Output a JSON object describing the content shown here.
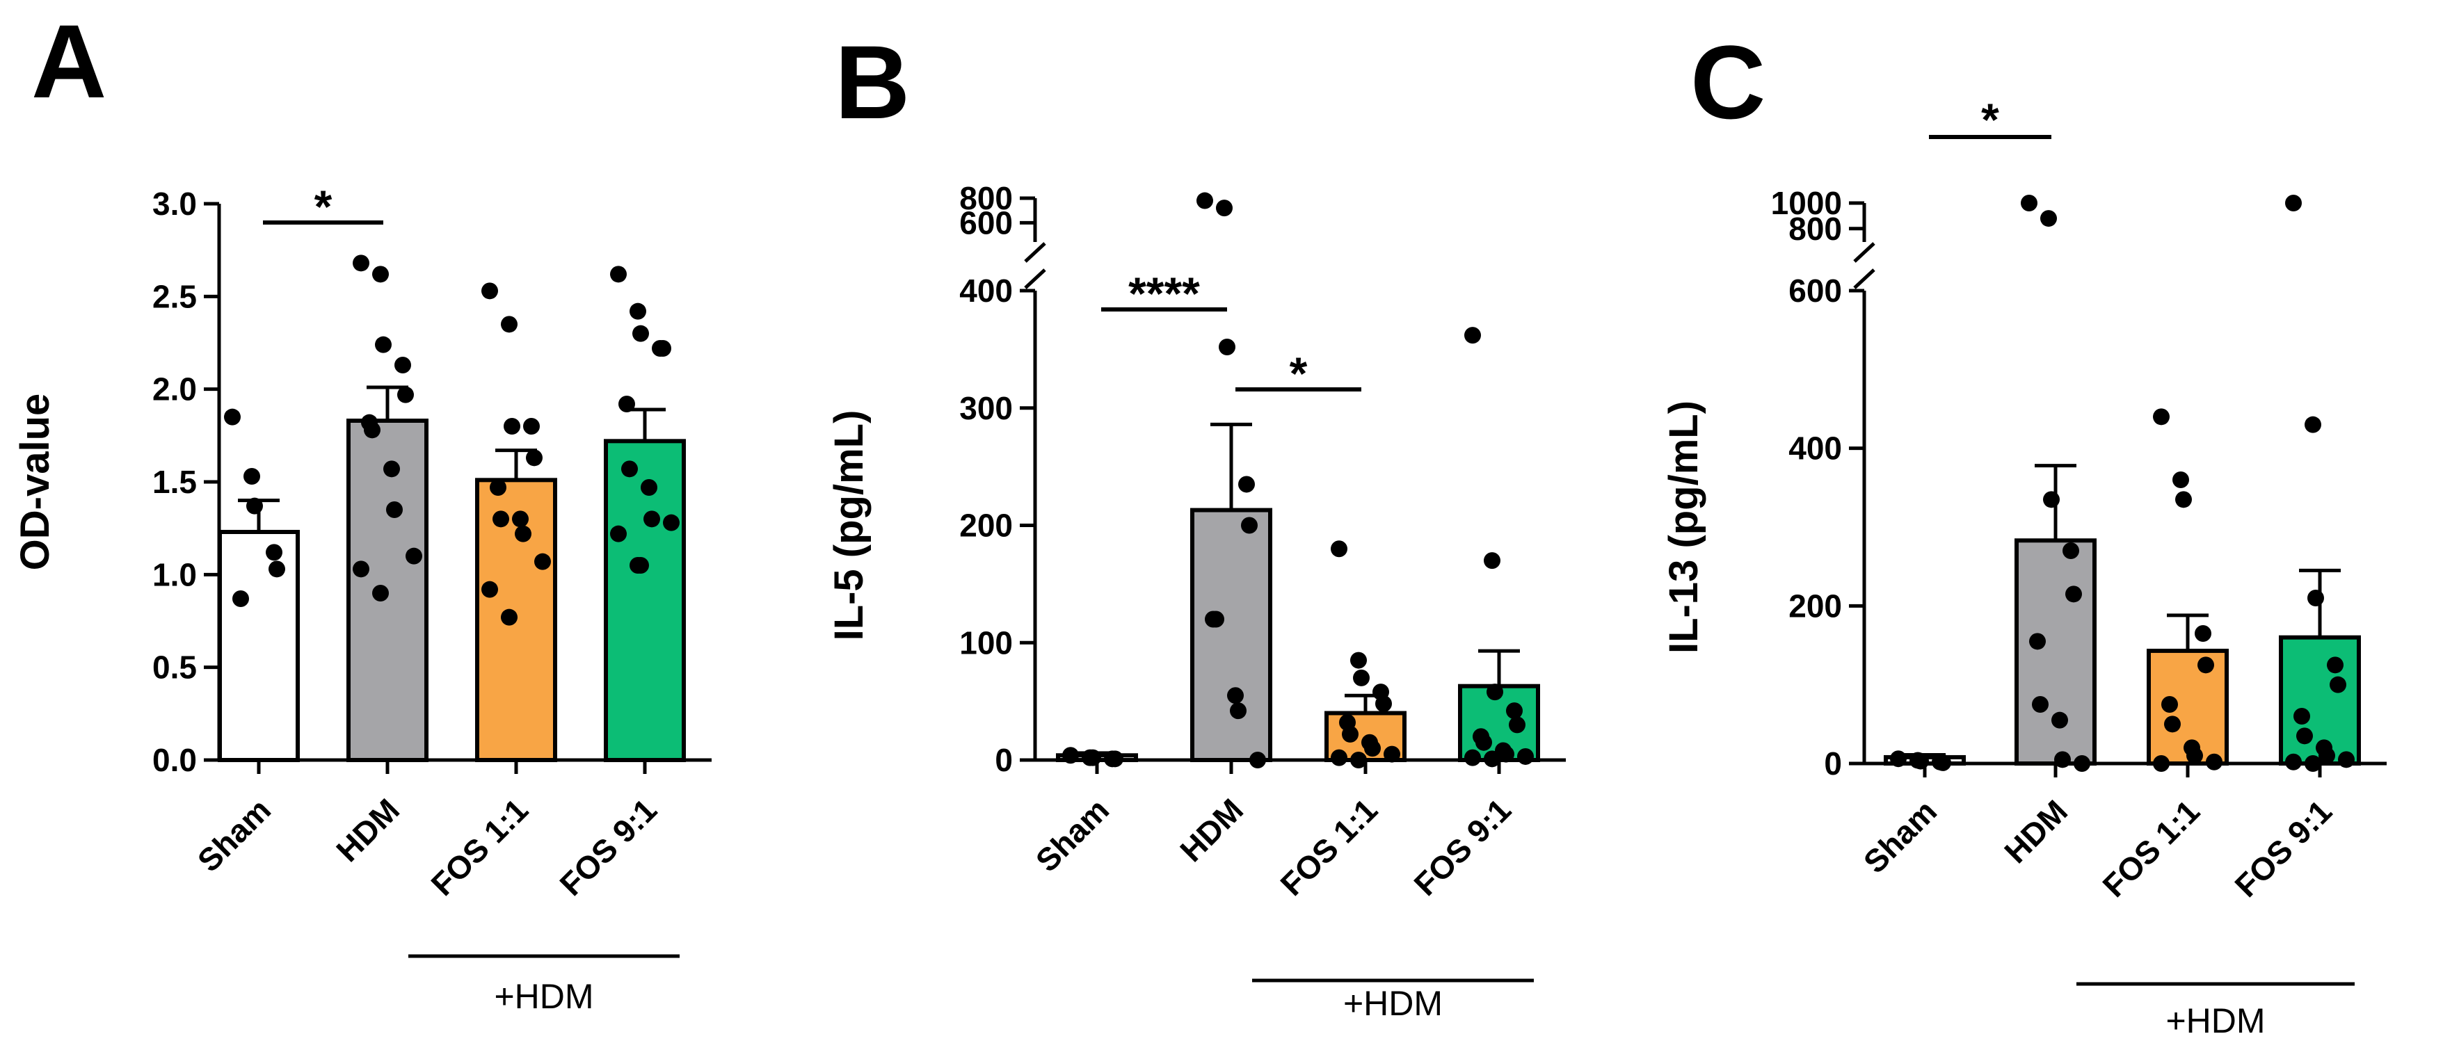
{
  "chart_data": [
    {
      "type": "bar",
      "panel": "A",
      "categories": [
        "Sham",
        "HDM",
        "FOS 1:1",
        "FOS 9:1"
      ],
      "group_label": "+HDM",
      "ylabel": "OD-value",
      "ylim": [
        0,
        3.0
      ],
      "yticks": [
        0,
        0.5,
        1.0,
        1.5,
        2.0,
        2.5,
        3.0
      ],
      "ytick_labels": [
        "0.0",
        "0.5",
        "1.0",
        "1.5",
        "2.0",
        "2.5",
        "3.0"
      ],
      "values": [
        1.23,
        1.83,
        1.51,
        1.72
      ],
      "errors": [
        0.17,
        0.18,
        0.16,
        0.17
      ],
      "bar_colors": [
        "#ffffff",
        "#a5a5a8",
        "#f8a545",
        "#0cbd75"
      ],
      "points": [
        [
          1.85,
          1.53,
          1.37,
          1.12,
          1.03,
          0.87
        ],
        [
          2.68,
          2.62,
          2.24,
          2.13,
          1.97,
          1.82,
          1.78,
          1.57,
          1.35,
          1.1,
          1.03,
          0.9
        ],
        [
          2.53,
          2.35,
          1.8,
          1.8,
          1.63,
          1.47,
          1.3,
          1.3,
          1.22,
          1.07,
          0.92,
          0.77
        ],
        [
          2.62,
          2.42,
          2.3,
          2.22,
          2.22,
          1.92,
          1.57,
          1.47,
          1.3,
          1.28,
          1.22,
          1.05,
          1.05
        ]
      ],
      "significance": [
        {
          "from": "Sham",
          "to": "HDM",
          "label": "*"
        }
      ]
    },
    {
      "type": "bar",
      "panel": "B",
      "categories": [
        "Sham",
        "HDM",
        "FOS 1:1",
        "FOS 9:1"
      ],
      "group_label": "+HDM",
      "ylabel": "IL-5 (pg/mL)",
      "ylim": [
        0,
        400
      ],
      "ylim_upper": [
        500,
        800
      ],
      "axis_break": true,
      "yticks": [
        0,
        100,
        200,
        300,
        400,
        600,
        800
      ],
      "ytick_labels": [
        "0",
        "100",
        "200",
        "300",
        "400",
        "600",
        "800"
      ],
      "values": [
        4,
        213,
        40,
        63
      ],
      "errors": [
        2,
        73,
        15,
        30
      ],
      "bar_colors": [
        "#ffffff",
        "#a5a5a8",
        "#f8a545",
        "#0cbd75"
      ],
      "points": [
        [
          4,
          2,
          2,
          1,
          1
        ],
        [
          780,
          720,
          352,
          235,
          200,
          120,
          120,
          55,
          42,
          0
        ],
        [
          180,
          85,
          70,
          58,
          48,
          32,
          22,
          15,
          10,
          5,
          2,
          0
        ],
        [
          362,
          170,
          58,
          42,
          30,
          20,
          15,
          8,
          5,
          3,
          2,
          1
        ]
      ],
      "significance": [
        {
          "from": "Sham",
          "to": "HDM",
          "label": "****"
        },
        {
          "from": "HDM",
          "to": "FOS 1:1",
          "label": "*"
        }
      ]
    },
    {
      "type": "bar",
      "panel": "C",
      "categories": [
        "Sham",
        "HDM",
        "FOS 1:1",
        "FOS 9:1"
      ],
      "group_label": "+HDM",
      "ylabel": "IL-13 (pg/mL)",
      "ylim": [
        0,
        600
      ],
      "ylim_upper": [
        750,
        1000
      ],
      "axis_break": true,
      "yticks": [
        0,
        200,
        400,
        600,
        800,
        1000
      ],
      "ytick_labels": [
        "0",
        "200",
        "400",
        "600",
        "800",
        "1000"
      ],
      "values": [
        8,
        283,
        143,
        160
      ],
      "errors": [
        3,
        95,
        45,
        85
      ],
      "bar_colors": [
        "#ffffff",
        "#a5a5a8",
        "#f8a545",
        "#0cbd75"
      ],
      "points": [
        [
          6,
          4,
          3,
          2,
          1
        ],
        [
          1000,
          880,
          335,
          270,
          215,
          155,
          75,
          55,
          5,
          0
        ],
        [
          440,
          360,
          335,
          165,
          125,
          75,
          50,
          20,
          10,
          2,
          0
        ],
        [
          1000,
          430,
          210,
          125,
          100,
          60,
          35,
          20,
          10,
          5,
          2,
          0
        ]
      ],
      "significance": [
        {
          "from": "Sham",
          "to": "HDM",
          "label": "*"
        }
      ]
    }
  ]
}
